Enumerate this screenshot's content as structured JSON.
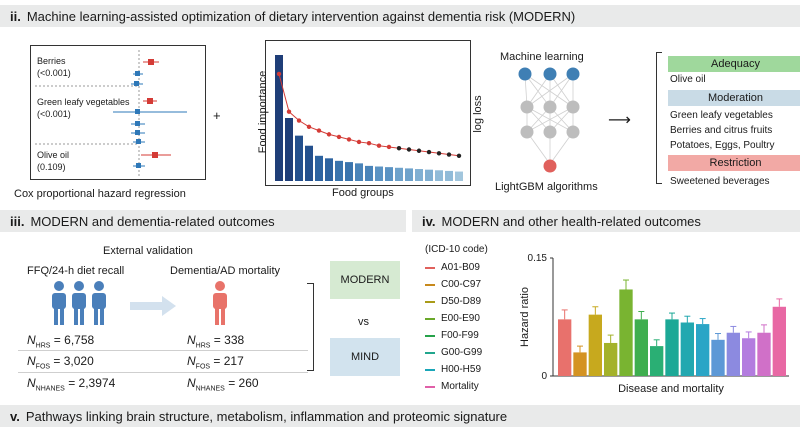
{
  "section_ii": {
    "numeral": "ii.",
    "title": "Machine learning-assisted optimization of dietary intervention against dementia risk (MODERN)",
    "forest_labels": [
      {
        "name": "Berries",
        "p": "(<0.001)"
      },
      {
        "name": "Green leafy vegetables",
        "p": "(<0.001)"
      },
      {
        "name": "Olive oil",
        "p": "(0.109)"
      }
    ],
    "cox_caption": "Cox proportional hazard regression",
    "plus": "+",
    "importance_ylabel": "Food importance",
    "importance_xlabel": "Food groups",
    "logloss_label": "log loss",
    "ml_title": "Machine learning",
    "ml_caption": "LightGBM algorithms",
    "arrow": "⟶",
    "categories": [
      {
        "label": "Adequacy",
        "color": "#9fd89c",
        "items": [
          "Olive oil"
        ]
      },
      {
        "label": "Moderation",
        "color": "#c9dbe6",
        "items": [
          "Green leafy vegetables",
          "Berries and citrus fruits",
          "Potatoes, Eggs, Poultry"
        ]
      },
      {
        "label": "Restriction",
        "color": "#f2a9a5",
        "items": [
          "Sweetened beverages"
        ]
      }
    ]
  },
  "section_iii": {
    "numeral": "iii.",
    "title": "MODERN and dementia-related outcomes",
    "external": "External validation",
    "left_heading": "FFQ/24-h diet recall",
    "right_heading": "Dementia/AD mortality",
    "left_counts": [
      {
        "n": "N",
        "sub": "HRS",
        "value": "= 6,758"
      },
      {
        "n": "N",
        "sub": "FOS",
        "value": "= 3,020"
      },
      {
        "n": "N",
        "sub": "NHANES",
        "value": "= 2,3974"
      }
    ],
    "right_counts": [
      {
        "n": "N",
        "sub": "HRS",
        "value": "= 338"
      },
      {
        "n": "N",
        "sub": "FOS",
        "value": "= 217"
      },
      {
        "n": "N",
        "sub": "NHANES",
        "value": "= 260"
      }
    ],
    "modern_box": "MODERN",
    "vs": "vs",
    "mind_box": "MIND"
  },
  "section_iv": {
    "numeral": "iv.",
    "title": "MODERN and other health-related outcomes",
    "legend_title": "(ICD-10 code)",
    "legend": [
      {
        "label": "A01-B09",
        "color": "#e0615c"
      },
      {
        "label": "C00-C97",
        "color": "#c7891c"
      },
      {
        "label": "D50-D89",
        "color": "#a99b18"
      },
      {
        "label": "E00-E90",
        "color": "#6aa82a"
      },
      {
        "label": "F00-F99",
        "color": "#26a24a"
      },
      {
        "label": "G00-G99",
        "color": "#21a68d"
      },
      {
        "label": "H00-H59",
        "color": "#1aa6b8"
      },
      {
        "label": "Mortality",
        "color": "#e060a8"
      }
    ]
  },
  "section_v": {
    "numeral": "v.",
    "title": "Pathways linking brain structure, metabolism, inflammation and proteomic signature"
  },
  "chart_data": [
    {
      "type": "bar",
      "title": "",
      "xlabel": "Food groups",
      "ylabel": "Food importance",
      "values": [
        1.0,
        0.5,
        0.36,
        0.28,
        0.2,
        0.18,
        0.16,
        0.15,
        0.14,
        0.12,
        0.115,
        0.11,
        0.105,
        0.1,
        0.095,
        0.09,
        0.085,
        0.08,
        0.075
      ],
      "series": [
        {
          "name": "log loss",
          "values": [
            0.85,
            0.55,
            0.48,
            0.43,
            0.4,
            0.37,
            0.35,
            0.33,
            0.31,
            0.3,
            0.28,
            0.27,
            0.26,
            0.25,
            0.24,
            0.23,
            0.22,
            0.21,
            0.2
          ]
        }
      ]
    },
    {
      "type": "bar",
      "title": "",
      "xlabel": "Disease and mortality",
      "ylabel": "Hazard ratio",
      "ylim": [
        0,
        0.15
      ],
      "y_ticks": [
        "0",
        "0.15"
      ],
      "values": [
        0.072,
        0.03,
        0.078,
        0.042,
        0.11,
        0.072,
        0.038,
        0.072,
        0.068,
        0.066,
        0.046,
        0.055,
        0.048,
        0.055,
        0.088
      ],
      "errors": [
        0.012,
        0.008,
        0.01,
        0.01,
        0.012,
        0.01,
        0.008,
        0.008,
        0.008,
        0.007,
        0.008,
        0.008,
        0.008,
        0.01,
        0.01
      ],
      "bar_colors": [
        "#e8716c",
        "#d49322",
        "#c7a91e",
        "#a4b22a",
        "#79b431",
        "#3fae4f",
        "#2aaf74",
        "#1ca896",
        "#22a8b0",
        "#2aa5c6",
        "#5c98d6",
        "#8c8ae0",
        "#b37cdf",
        "#d070c8",
        "#e868a4"
      ]
    }
  ]
}
